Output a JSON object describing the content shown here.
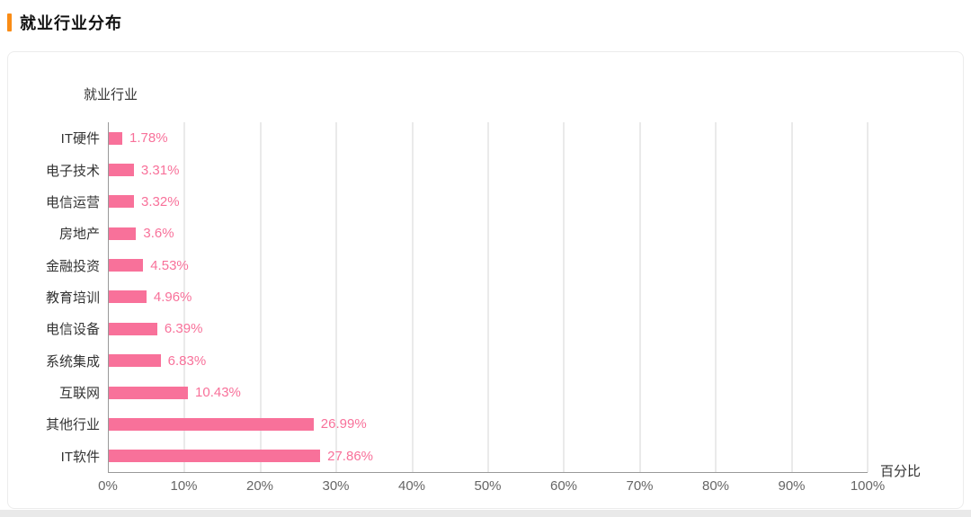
{
  "page": {
    "title": "就业行业分布",
    "accent_color": "#FA8C16"
  },
  "chart": {
    "y_axis_title": "就业行业",
    "x_axis_title": "百分比",
    "bar_color": "#F8719A",
    "grid_color": "#d6d6d6",
    "x_ticks": [
      "0%",
      "10%",
      "20%",
      "30%",
      "40%",
      "50%",
      "60%",
      "70%",
      "80%",
      "90%",
      "100%"
    ]
  },
  "chart_data": {
    "type": "bar",
    "orientation": "horizontal",
    "title": "就业行业分布",
    "categories": [
      "IT硬件",
      "电子技术",
      "电信运营",
      "房地产",
      "金融投资",
      "教育培训",
      "电信设备",
      "系统集成",
      "互联网",
      "其他行业",
      "IT软件"
    ],
    "values": [
      1.78,
      3.31,
      3.32,
      3.6,
      4.53,
      4.96,
      6.39,
      6.83,
      10.43,
      26.99,
      27.86
    ],
    "labels": [
      "1.78%",
      "3.31%",
      "3.32%",
      "3.6%",
      "4.53%",
      "4.96%",
      "6.39%",
      "6.83%",
      "10.43%",
      "26.99%",
      "27.86%"
    ],
    "xlabel": "百分比",
    "ylabel": "就业行业",
    "xlim": [
      0,
      100
    ],
    "grid": true,
    "legend": false
  }
}
